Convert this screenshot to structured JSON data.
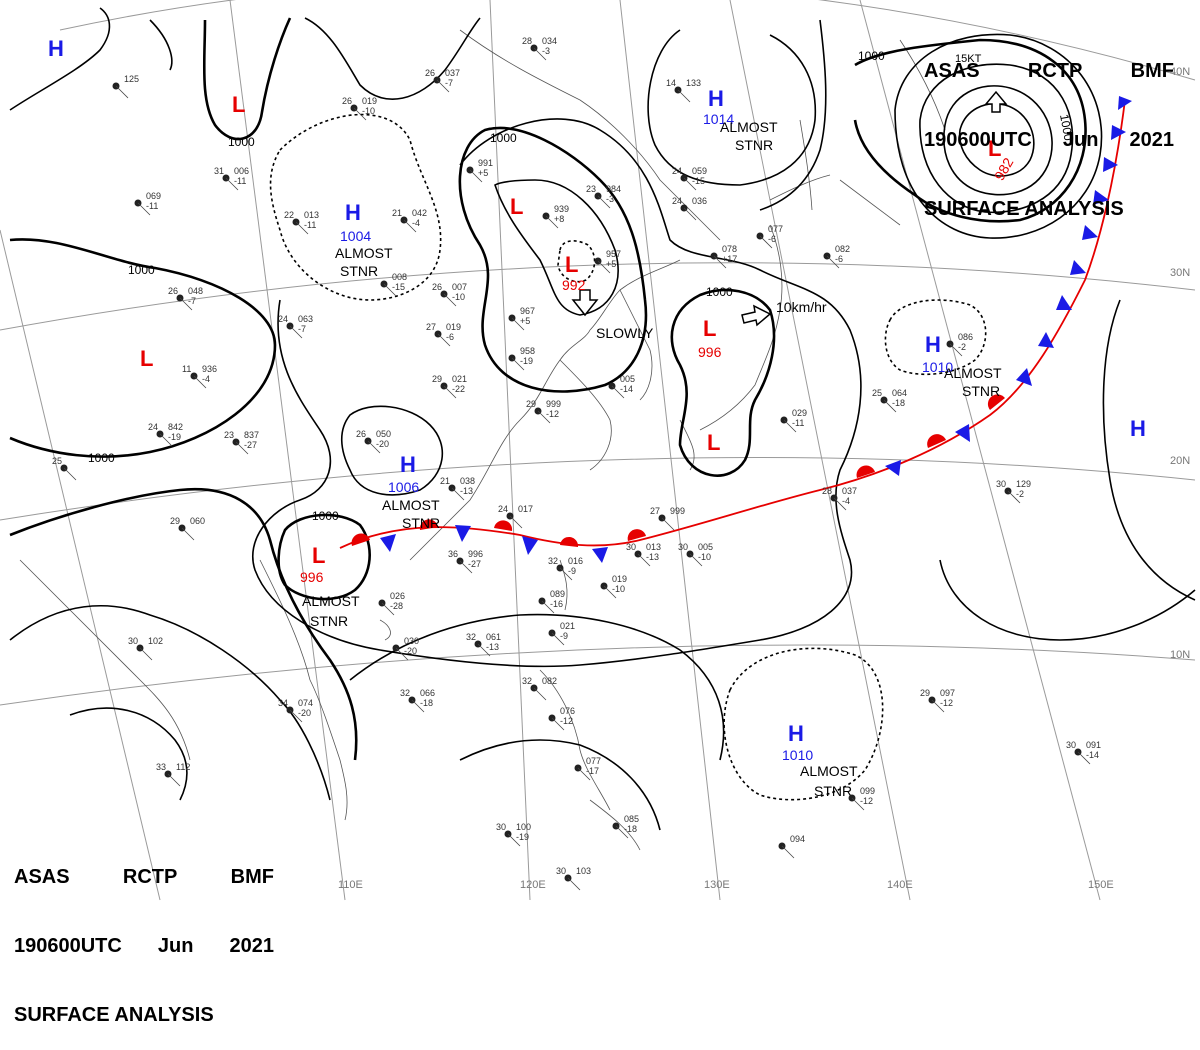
{
  "header": {
    "agency": "ASAS",
    "station": "RCTP",
    "office": "BMF",
    "time": "190600UTC",
    "month": "Jun",
    "year": "2021",
    "product": "SURFACE ANALYSIS"
  },
  "colors": {
    "high": "#1a1ae6",
    "low": "#e60000",
    "warm_front": "#e60000",
    "cold_front": "#1a1ae6",
    "grid": "#9a9a9a",
    "coast": "#555555",
    "isobar": "#000000"
  },
  "grid": {
    "lon_labels": [
      "110E",
      "120E",
      "130E",
      "140E",
      "150E"
    ],
    "lat_labels": [
      "40N",
      "30N",
      "20N",
      "10N"
    ]
  },
  "isobar_labels": [
    "1000",
    "1000",
    "1000",
    "1000",
    "1000",
    "1000",
    "1000",
    "1000"
  ],
  "pressure_centers": [
    {
      "type": "H",
      "value": ""
    },
    {
      "type": "L",
      "value": ""
    },
    {
      "type": "H",
      "value": "1004",
      "note": "ALMOST STNR"
    },
    {
      "type": "L",
      "value": ""
    },
    {
      "type": "L",
      "value": "992",
      "note": "SLOWLY"
    },
    {
      "type": "H",
      "value": "1014",
      "note": "ALMOST STNR"
    },
    {
      "type": "L",
      "value": "982"
    },
    {
      "type": "L",
      "value": "996",
      "note": "10km/hr"
    },
    {
      "type": "L",
      "value": ""
    },
    {
      "type": "H",
      "value": "1010",
      "note": "ALMOST STNR"
    },
    {
      "type": "H",
      "value": ""
    },
    {
      "type": "H",
      "value": "1006",
      "note": "ALMOST STNR"
    },
    {
      "type": "L",
      "value": "996",
      "note": "ALMOST STNR"
    },
    {
      "type": "H",
      "value": "1010",
      "note": "ALMOST STNR"
    },
    {
      "type": "L",
      "value": ""
    }
  ],
  "motion_notes": [
    "SLOWLY",
    "10km/hr",
    "15KT"
  ],
  "station_plots": [
    {
      "t": "28",
      "p": "034",
      "d": "-3"
    },
    {
      "t": "26",
      "p": "037",
      "d": "-7"
    },
    {
      "t": "26",
      "p": "019",
      "d": "-10"
    },
    {
      "t": "31",
      "p": "006",
      "d": "-11"
    },
    {
      "t": "",
      "p": "069",
      "d": "-11"
    },
    {
      "t": "22",
      "p": "013",
      "d": "-11"
    },
    {
      "t": "21",
      "p": "042",
      "d": "-4"
    },
    {
      "t": "",
      "p": "008",
      "d": "-15"
    },
    {
      "t": "26",
      "p": "007",
      "d": "-10"
    },
    {
      "t": "27",
      "p": "019",
      "d": "-6"
    },
    {
      "t": "24",
      "p": "063",
      "d": "-7"
    },
    {
      "t": "26",
      "p": "048",
      "d": "-7"
    },
    {
      "t": "11",
      "p": "936",
      "d": "-4"
    },
    {
      "t": "29",
      "p": "021",
      "d": "-22"
    },
    {
      "t": "24",
      "p": "842",
      "d": "-19"
    },
    {
      "t": "23",
      "p": "837",
      "d": "-27"
    },
    {
      "t": "25",
      "p": "",
      "d": ""
    },
    {
      "t": "",
      "p": "991",
      "d": "+5"
    },
    {
      "t": "",
      "p": "939",
      "d": "+8"
    },
    {
      "t": "23",
      "p": "984",
      "d": "-3"
    },
    {
      "t": "",
      "p": "957",
      "d": "+5"
    },
    {
      "t": "",
      "p": "967",
      "d": "+5"
    },
    {
      "t": "",
      "p": "958",
      "d": "-19"
    },
    {
      "t": "",
      "p": "005",
      "d": "-14"
    },
    {
      "t": "29",
      "p": "999",
      "d": "-12"
    },
    {
      "t": "26",
      "p": "050",
      "d": "-20"
    },
    {
      "t": "21",
      "p": "038",
      "d": "-13"
    },
    {
      "t": "24",
      "p": "017",
      "d": ""
    },
    {
      "t": "29",
      "p": "060",
      "d": ""
    },
    {
      "t": "36",
      "p": "996",
      "d": "-27"
    },
    {
      "t": "32",
      "p": "016",
      "d": "-9"
    },
    {
      "t": "",
      "p": "019",
      "d": "-10"
    },
    {
      "t": "30",
      "p": "013",
      "d": "-13"
    },
    {
      "t": "30",
      "p": "005",
      "d": "-10"
    },
    {
      "t": "27",
      "p": "999",
      "d": ""
    },
    {
      "t": "",
      "p": "029",
      "d": "-11"
    },
    {
      "t": "25",
      "p": "064",
      "d": "-18"
    },
    {
      "t": "",
      "p": "086",
      "d": "-2"
    },
    {
      "t": "30",
      "p": "129",
      "d": "-2"
    },
    {
      "t": "28",
      "p": "037",
      "d": "-4"
    },
    {
      "t": "",
      "p": "082",
      "d": "-6"
    },
    {
      "t": "",
      "p": "078",
      "d": "+17"
    },
    {
      "t": "24",
      "p": "059",
      "d": "-15"
    },
    {
      "t": "14",
      "p": "133",
      "d": ""
    },
    {
      "t": "24",
      "p": "036",
      "d": ""
    },
    {
      "t": "",
      "p": "077",
      "d": "-6"
    },
    {
      "t": "",
      "p": "026",
      "d": "-28"
    },
    {
      "t": "",
      "p": "030",
      "d": "-20"
    },
    {
      "t": "",
      "p": "089",
      "d": "-16"
    },
    {
      "t": "",
      "p": "021",
      "d": "-9"
    },
    {
      "t": "32",
      "p": "061",
      "d": "-13"
    },
    {
      "t": "32",
      "p": "066",
      "d": "-18"
    },
    {
      "t": "30",
      "p": "102",
      "d": ""
    },
    {
      "t": "34",
      "p": "074",
      "d": "-20"
    },
    {
      "t": "33",
      "p": "112",
      "d": ""
    },
    {
      "t": "32",
      "p": "082",
      "d": ""
    },
    {
      "t": "",
      "p": "076",
      "d": "-12"
    },
    {
      "t": "",
      "p": "077",
      "d": "-17"
    },
    {
      "t": "",
      "p": "085",
      "d": "-18"
    },
    {
      "t": "30",
      "p": "100",
      "d": "-19"
    },
    {
      "t": "30",
      "p": "103",
      "d": ""
    },
    {
      "t": "",
      "p": "094",
      "d": ""
    },
    {
      "t": "29",
      "p": "097",
      "d": "-12"
    },
    {
      "t": "30",
      "p": "091",
      "d": "-14"
    },
    {
      "t": "",
      "p": "099",
      "d": "-12"
    },
    {
      "t": "",
      "p": "125",
      "d": ""
    }
  ]
}
